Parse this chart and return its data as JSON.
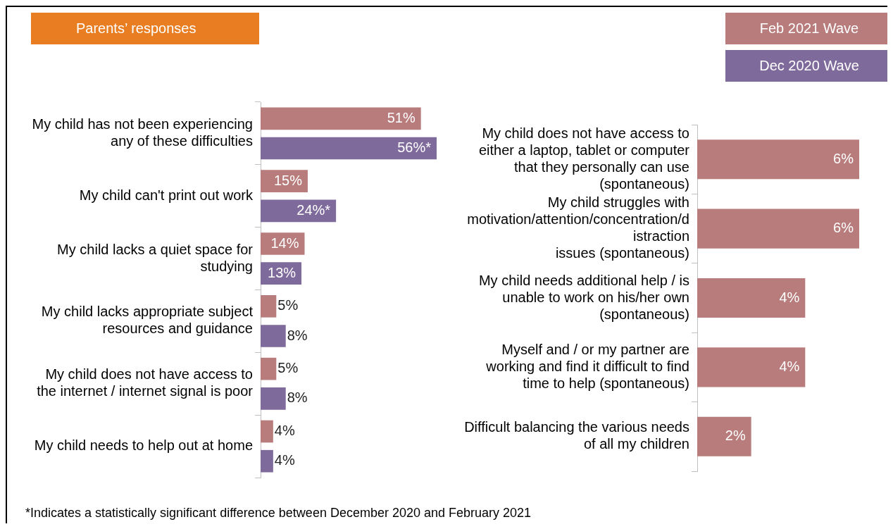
{
  "chart_data": [
    {
      "type": "bar",
      "orientation": "horizontal",
      "title": "Parents’ responses",
      "legend": "top right",
      "categories": [
        "My child has not been experiencing any of these difficulties",
        "My child can't print out work",
        "My child lacks a quiet space for studying",
        "My child lacks appropriate subject resources and guidance",
        "My child does not have access to the internet / internet signal is poor",
        "My child needs to help out at home"
      ],
      "series": [
        {
          "name": "Feb 2021 Wave",
          "color": "#b87c7c",
          "values": [
            51,
            15,
            14,
            5,
            5,
            4
          ],
          "value_labels": [
            "51%",
            "15%",
            "14%",
            "5%",
            "5%",
            "4%"
          ]
        },
        {
          "name": "Dec 2020 Wave",
          "color": "#7f6a9c",
          "values": [
            56,
            24,
            13,
            8,
            8,
            4
          ],
          "value_labels": [
            "56%*",
            "24%*",
            "13%",
            "8%",
            "8%",
            "4%"
          ]
        }
      ],
      "annotations": [
        "*Indicates a statistically significant difference between December 2020 and February 2021"
      ]
    },
    {
      "type": "bar",
      "orientation": "horizontal",
      "categories": [
        "My child does not have access to either a laptop, tablet or computer that they personally can use (spontaneous)",
        "My child struggles with motivation/attention/concentration/distraction issues (spontaneous)",
        "My child needs additional help / is unable to work on his/her own (spontaneous)",
        "Myself and / or my partner are working and find it difficult to find time to help (spontaneous)",
        "Difficult balancing the various needs of all my children"
      ],
      "series": [
        {
          "color": "#b87c7c",
          "values": [
            6,
            6,
            4,
            4,
            2
          ],
          "value_labels": [
            "6%",
            "6%",
            "4%",
            "4%",
            "2%"
          ]
        }
      ]
    }
  ]
}
